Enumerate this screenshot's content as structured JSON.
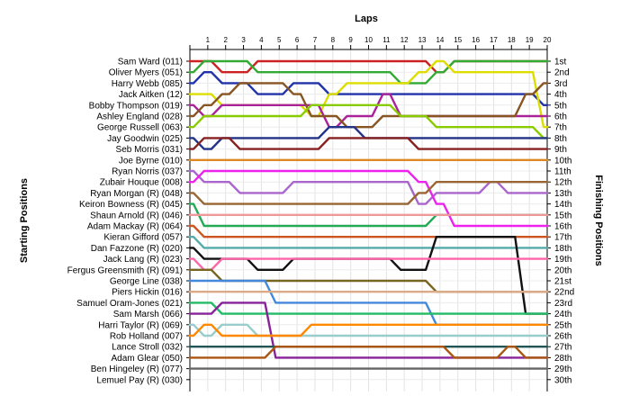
{
  "chart_data": {
    "type": "line",
    "title": "",
    "xlabel": "Laps",
    "ylabel_left": "Starting Positions",
    "ylabel_right": "Finishing Positions",
    "x": [
      0,
      1,
      2,
      3,
      4,
      5,
      6,
      7,
      8,
      9,
      10,
      11,
      12,
      13,
      14,
      15,
      16,
      17,
      18,
      19,
      20
    ],
    "x_tick_labels": [
      "1",
      "2",
      "3",
      "4",
      "5",
      "6",
      "7",
      "8",
      "9",
      "10",
      "11",
      "12",
      "13",
      "14",
      "15",
      "16",
      "17",
      "18",
      "19",
      "20"
    ],
    "grid": true,
    "drivers": [
      "Sam Ward (011)",
      "Oliver Myers (051)",
      "Harry Webb (085)",
      "Jack Aitken (12)",
      "Bobby Thompson (019)",
      "Ashley England (028)",
      "George Russell (063)",
      "Jay Goodwin (025)",
      "Seb Morris (031)",
      "Joe Byrne (010)",
      "Ryan Norris (037)",
      "Zubair Houque (008)",
      "Ryan Morgan (R) (048)",
      "Keiron Bowness (R) (045)",
      "Shaun Arnold (R) (046)",
      "Adam Mackay (R) (064)",
      "Kieran Gifford (057)",
      "Dan Fazzone (R) (020)",
      "Jack Lang (R) (023)",
      "Fergus Greensmith (R) (091)",
      "George Line (038)",
      "Piers Hickin (016)",
      "Samuel Oram-Jones (021)",
      "Sam Marsh (066)",
      "Harri Taylor (R) (069)",
      "Rob Holland (007)",
      "Lance Stroll (032)",
      "Adam Glear (050)",
      "Ben Hingeley (R) (077)",
      "Lemuel Pay (R) (030)"
    ],
    "finishing_labels": [
      "1st",
      "2nd",
      "3rd",
      "4th",
      "5th",
      "6th",
      "7th",
      "8th",
      "9th",
      "10th",
      "11th",
      "12th",
      "13th",
      "14th",
      "15th",
      "16th",
      "17th",
      "18th",
      "19th",
      "20th",
      "21st",
      "22nd",
      "23rd",
      "24th",
      "25th",
      "26th",
      "27th",
      "28th",
      "29th",
      "30th"
    ],
    "series": [
      {
        "name": "Sam Ward (011)",
        "color": "#cc2222",
        "positions": [
          1,
          1,
          2,
          2,
          1,
          1,
          1,
          1,
          1,
          1,
          1,
          1,
          1,
          1,
          2,
          1,
          1,
          1,
          1,
          1,
          1
        ]
      },
      {
        "name": "Oliver Myers (051)",
        "color": "#33aa33",
        "positions": [
          2,
          1,
          1,
          1,
          2,
          2,
          2,
          2,
          2,
          2,
          2,
          2,
          3,
          3,
          2,
          1,
          1,
          1,
          1,
          1,
          1
        ]
      },
      {
        "name": "Harry Webb (085)",
        "color": "#2233aa",
        "positions": [
          3,
          2,
          3,
          3,
          4,
          4,
          3,
          3,
          4,
          4,
          4,
          4,
          4,
          4,
          4,
          4,
          4,
          4,
          4,
          4,
          5
        ]
      },
      {
        "name": "Jack Aitken (12)",
        "color": "#dddd00",
        "positions": [
          4,
          4,
          5,
          5,
          5,
          5,
          5,
          6,
          4,
          3,
          3,
          3,
          3,
          2,
          1,
          2,
          2,
          2,
          2,
          2,
          7
        ]
      },
      {
        "name": "Bobby Thompson (019)",
        "color": "#aa2299",
        "positions": [
          5,
          6,
          5,
          5,
          5,
          5,
          5,
          5,
          7,
          6,
          6,
          4,
          6,
          6,
          6,
          6,
          6,
          6,
          6,
          6,
          6
        ]
      },
      {
        "name": "Ashley England (028)",
        "color": "#885522",
        "positions": [
          6,
          5,
          4,
          3,
          3,
          3,
          4,
          6,
          6,
          7,
          7,
          6,
          6,
          6,
          6,
          6,
          6,
          6,
          6,
          4,
          3
        ]
      },
      {
        "name": "George Russell (063)",
        "color": "#88cc00",
        "positions": [
          7,
          6,
          6,
          6,
          6,
          6,
          6,
          5,
          5,
          5,
          5,
          5,
          6,
          6,
          7,
          7,
          7,
          7,
          7,
          7,
          8
        ]
      },
      {
        "name": "Jay Goodwin (025)",
        "color": "#223388",
        "positions": [
          8,
          9,
          8,
          8,
          8,
          8,
          8,
          8,
          7,
          7,
          8,
          8,
          8,
          8,
          8,
          8,
          8,
          8,
          8,
          8,
          8
        ]
      },
      {
        "name": "Seb Morris (031)",
        "color": "#882222",
        "positions": [
          9,
          8,
          8,
          9,
          9,
          9,
          9,
          9,
          8,
          8,
          8,
          8,
          8,
          9,
          9,
          9,
          9,
          9,
          9,
          9,
          9
        ]
      },
      {
        "name": "Joe Byrne (010)",
        "color": "#dd8822",
        "positions": [
          10,
          10,
          10,
          10,
          10,
          10,
          10,
          10,
          10,
          10,
          10,
          10,
          10,
          10,
          10,
          10,
          10,
          10,
          10,
          10,
          10
        ]
      },
      {
        "name": "Ryan Norris (037)",
        "color": "#aa66cc",
        "positions": [
          11,
          12,
          12,
          13,
          13,
          13,
          12,
          12,
          12,
          12,
          12,
          12,
          12,
          14,
          13,
          13,
          13,
          12,
          13,
          13,
          13
        ]
      },
      {
        "name": "Zubair Houque (008)",
        "color": "#ee22ee",
        "positions": [
          12,
          11,
          11,
          11,
          11,
          11,
          11,
          11,
          11,
          11,
          11,
          11,
          11,
          12,
          14,
          16,
          16,
          16,
          16,
          16,
          16
        ]
      },
      {
        "name": "Ryan Morgan (R) (048)",
        "color": "#996633",
        "positions": [
          13,
          14,
          14,
          14,
          14,
          14,
          14,
          14,
          14,
          14,
          14,
          14,
          14,
          13,
          12,
          12,
          12,
          12,
          12,
          12,
          12
        ]
      },
      {
        "name": "Keiron Bowness (R) (045)",
        "color": "#22aa55",
        "positions": [
          14,
          16,
          16,
          16,
          16,
          16,
          16,
          16,
          16,
          16,
          16,
          16,
          16,
          16,
          15,
          15,
          15,
          15,
          15,
          15,
          15
        ]
      },
      {
        "name": "Shaun Arnold (R) (046)",
        "color": "#ee9999",
        "positions": [
          15,
          15,
          15,
          15,
          15,
          15,
          15,
          15,
          15,
          15,
          15,
          15,
          15,
          15,
          15,
          15,
          15,
          15,
          15,
          15,
          15
        ]
      },
      {
        "name": "Adam Mackay (R) (064)",
        "color": "#cc5522",
        "positions": [
          16,
          17,
          17,
          17,
          17,
          17,
          17,
          17,
          17,
          17,
          17,
          17,
          17,
          17,
          17,
          17,
          17,
          17,
          17,
          17,
          17
        ]
      },
      {
        "name": "Kieran Gifford (057)",
        "color": "#55aaaa",
        "positions": [
          17,
          18,
          18,
          18,
          18,
          18,
          18,
          18,
          18,
          18,
          18,
          18,
          18,
          18,
          18,
          18,
          18,
          18,
          18,
          18,
          18
        ]
      },
      {
        "name": "Dan Fazzone (R) (020)",
        "color": "#111111",
        "positions": [
          18,
          19,
          19,
          19,
          20,
          20,
          19,
          19,
          19,
          19,
          19,
          19,
          20,
          20,
          17,
          17,
          17,
          17,
          17,
          24,
          24
        ]
      },
      {
        "name": "Jack Lang (R) (023)",
        "color": "#ff66aa",
        "positions": [
          19,
          20,
          19,
          19,
          19,
          19,
          19,
          19,
          19,
          19,
          19,
          19,
          19,
          19,
          19,
          19,
          19,
          19,
          19,
          19,
          19
        ]
      },
      {
        "name": "Fergus Greensmith (R) (091)",
        "color": "#776622",
        "positions": [
          20,
          20,
          21,
          21,
          21,
          21,
          21,
          21,
          21,
          21,
          21,
          21,
          21,
          21,
          22,
          22,
          22,
          22,
          22,
          22,
          22
        ]
      },
      {
        "name": "George Line (038)",
        "color": "#4488dd",
        "positions": [
          21,
          21,
          21,
          21,
          21,
          23,
          23,
          23,
          23,
          23,
          23,
          23,
          23,
          23,
          25,
          25,
          25,
          25,
          25,
          25,
          25
        ]
      },
      {
        "name": "Piers Hickin (016)",
        "color": "#ddaa88",
        "positions": [
          22,
          22,
          22,
          22,
          22,
          22,
          22,
          22,
          22,
          22,
          22,
          22,
          22,
          22,
          22,
          22,
          22,
          22,
          22,
          22,
          22
        ]
      },
      {
        "name": "Samuel Oram-Jones (021)",
        "color": "#22bb66",
        "positions": [
          23,
          23,
          24,
          24,
          24,
          24,
          24,
          24,
          24,
          24,
          24,
          24,
          24,
          24,
          24,
          24,
          24,
          24,
          24,
          24,
          24
        ]
      },
      {
        "name": "Sam Marsh (066)",
        "color": "#882299",
        "positions": [
          24,
          24,
          23,
          23,
          23,
          28,
          28,
          28,
          28,
          28,
          28,
          28,
          28,
          28,
          28,
          28,
          28,
          28,
          28,
          28,
          28
        ]
      },
      {
        "name": "Harri Taylor (R) (069)",
        "color": "#99cccc",
        "positions": [
          25,
          26,
          25,
          25,
          26,
          26,
          26,
          26,
          26,
          26,
          26,
          26,
          26,
          26,
          26,
          26,
          26,
          26,
          26,
          26,
          26
        ]
      },
      {
        "name": "Rob Holland (007)",
        "color": "#ff8800",
        "positions": [
          26,
          25,
          26,
          26,
          26,
          26,
          26,
          25,
          25,
          25,
          25,
          25,
          25,
          25,
          25,
          25,
          25,
          25,
          25,
          25,
          25
        ]
      },
      {
        "name": "Lance Stroll (032)",
        "color": "#225555",
        "positions": [
          27,
          27,
          27,
          27,
          27,
          27,
          27,
          27,
          27,
          27,
          27,
          27,
          27,
          27,
          27,
          27,
          27,
          27,
          27,
          27,
          27
        ]
      },
      {
        "name": "Adam Glear (050)",
        "color": "#aa5511",
        "positions": [
          28,
          28,
          28,
          28,
          28,
          27,
          27,
          27,
          27,
          27,
          27,
          27,
          27,
          27,
          27,
          28,
          28,
          28,
          27,
          28,
          28
        ]
      },
      {
        "name": "Ben Hingeley (R) (077)",
        "color": "#666666",
        "positions": [
          29,
          29,
          29,
          29,
          29,
          29,
          29,
          29,
          29,
          29,
          29,
          29,
          29,
          29,
          29,
          29,
          29,
          29,
          29,
          29,
          29
        ]
      }
    ]
  }
}
